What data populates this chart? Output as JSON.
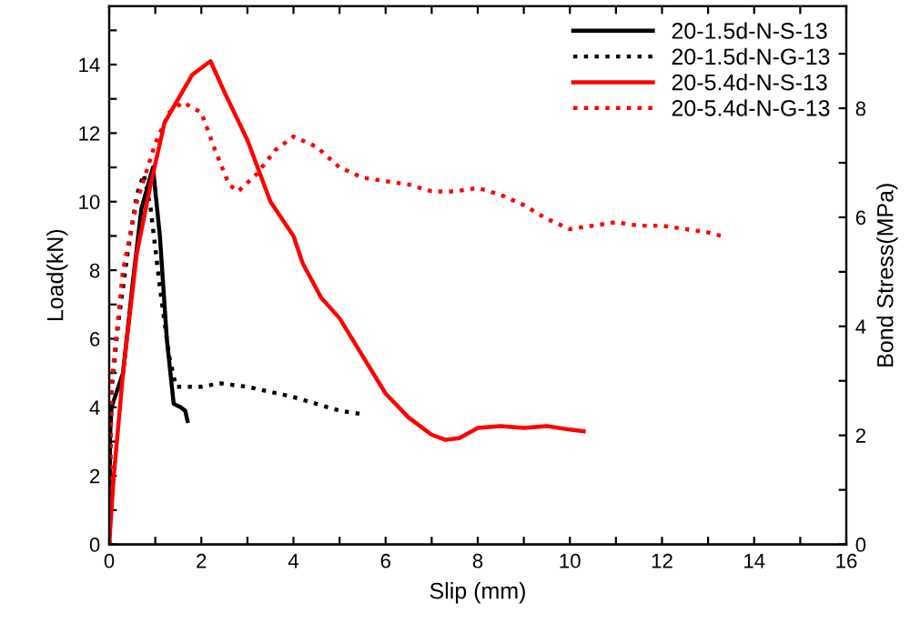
{
  "chart_data": {
    "type": "line",
    "xlabel": "Slip (mm)",
    "ylabel": "Load(kN)",
    "y2label": "Bond Stress(MPa)",
    "xlim": [
      0,
      16
    ],
    "xticks": [
      0,
      {
        "value": 1,
        "label": null
      },
      2,
      {
        "value": 3,
        "label": null
      },
      4,
      {
        "value": 5,
        "label": null
      },
      6,
      {
        "value": 7,
        "label": null
      },
      8,
      {
        "value": 9,
        "label": null
      },
      10,
      {
        "value": 11,
        "label": null
      },
      12,
      {
        "value": 13,
        "label": null
      },
      14,
      {
        "value": 15,
        "label": null
      },
      16
    ],
    "ylim": [
      0,
      15.7
    ],
    "yticks": [
      0,
      {
        "value": 1,
        "label": null
      },
      2,
      {
        "value": 3,
        "label": null
      },
      4,
      {
        "value": 5,
        "label": null
      },
      6,
      {
        "value": 7,
        "label": null
      },
      8,
      {
        "value": 9,
        "label": null
      },
      10,
      {
        "value": 11,
        "label": null
      },
      12,
      {
        "value": 13,
        "label": null
      },
      14,
      {
        "value": 15,
        "label": null
      }
    ],
    "y2lim": [
      0,
      9.87
    ],
    "y2ticks": [
      0,
      {
        "value": 1,
        "label": null
      },
      2,
      {
        "value": 3,
        "label": null
      },
      4,
      {
        "value": 5,
        "label": null
      },
      6,
      {
        "value": 7,
        "label": null
      },
      8,
      {
        "value": 9,
        "label": null
      }
    ],
    "legend": "top right",
    "grid": false,
    "marker": "none",
    "series": [
      {
        "name": "20-1.5d-N-S-13",
        "color": "#000000",
        "line_style": "solid",
        "x": [
          0,
          0.02,
          0.05,
          0.3,
          0.5,
          0.7,
          0.95,
          1.1,
          1.25,
          1.4,
          1.55,
          1.65,
          1.7
        ],
        "values": [
          0,
          3.2,
          4,
          5,
          7.5,
          9.8,
          11,
          9,
          6,
          4.1,
          4.0,
          3.9,
          3.6
        ]
      },
      {
        "name": "20-1.5d-N-G-13",
        "color": "#000000",
        "line_style": "dotted",
        "x": [
          0,
          0.05,
          0.2,
          0.4,
          0.6,
          0.75,
          0.9,
          1.1,
          1.3,
          1.45,
          2,
          2.4,
          3,
          4,
          4.5,
          5,
          5.5
        ],
        "values": [
          0,
          4.5,
          6.5,
          8.5,
          10.2,
          10.8,
          9.8,
          7.5,
          5.5,
          4.6,
          4.6,
          4.7,
          4.6,
          4.3,
          4.1,
          3.9,
          3.8
        ]
      },
      {
        "name": "20-5.4d-N-S-13",
        "color": "#ff0000",
        "line_style": "solid",
        "x": [
          0,
          0.1,
          0.3,
          0.6,
          0.9,
          1.2,
          1.5,
          1.8,
          2.2,
          2.5,
          3,
          3.5,
          4,
          4.2,
          4.6,
          5,
          5.5,
          6,
          6.5,
          7,
          7.3,
          7.6,
          8,
          8.5,
          9,
          9.5,
          10,
          10.3
        ],
        "values": [
          0,
          2,
          5,
          8.5,
          10.5,
          12.3,
          13,
          13.7,
          14.1,
          13.2,
          11.8,
          10,
          9,
          8.2,
          7.2,
          6.6,
          5.5,
          4.4,
          3.7,
          3.2,
          3.05,
          3.1,
          3.4,
          3.45,
          3.4,
          3.45,
          3.35,
          3.3
        ]
      },
      {
        "name": "20-5.4d-N-G-13",
        "color": "#ff0000",
        "line_style": "dotted",
        "x": [
          0,
          0.05,
          0.3,
          0.6,
          1.0,
          1.3,
          1.6,
          2,
          2.3,
          2.6,
          2.8,
          3.2,
          3.6,
          4,
          4.5,
          5,
          5.5,
          6,
          6.5,
          7,
          7.5,
          8,
          8.5,
          9,
          9.5,
          10,
          10.5,
          11,
          11.5,
          12,
          12.5,
          13,
          13.3
        ],
        "values": [
          0,
          4.7,
          8,
          10,
          11.7,
          12.6,
          12.9,
          12.6,
          11.5,
          10.5,
          10.3,
          10.8,
          11.5,
          11.9,
          11.6,
          11,
          10.7,
          10.6,
          10.5,
          10.3,
          10.3,
          10.4,
          10.2,
          9.9,
          9.5,
          9.2,
          9.3,
          9.4,
          9.3,
          9.3,
          9.2,
          9.1,
          9.0
        ]
      }
    ]
  }
}
